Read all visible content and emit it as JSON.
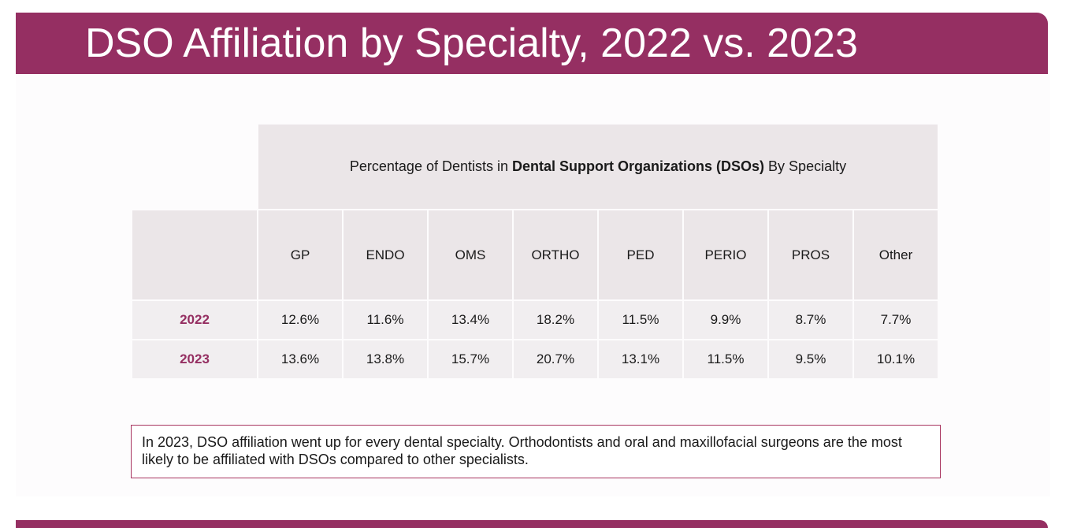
{
  "title": "DSO Affiliation by Specialty, 2022 vs. 2023",
  "table": {
    "header_prefix": "Percentage of Dentists in ",
    "header_bold": "Dental Support Organizations (DSOs)",
    "header_suffix": " By Specialty",
    "specialties": [
      "GP",
      "ENDO",
      "OMS",
      "ORTHO",
      "PED",
      "PERIO",
      "PROS",
      "Other"
    ],
    "rows": [
      {
        "year": "2022",
        "values": [
          "12.6%",
          "11.6%",
          "13.4%",
          "18.2%",
          "11.5%",
          "9.9%",
          "8.7%",
          "7.7%"
        ]
      },
      {
        "year": "2023",
        "values": [
          "13.6%",
          "13.8%",
          "15.7%",
          "20.7%",
          "13.1%",
          "11.5%",
          "9.5%",
          "10.1%"
        ]
      }
    ]
  },
  "callout": "In 2023, DSO affiliation went up for every dental specialty. Orthodontists and oral and maxillofacial surgeons are the most likely to be affiliated with DSOs compared to other specialists.",
  "colors": {
    "brand": "#952f62",
    "table_header_bg": "#ebe6e8",
    "table_row_bg": "#f1eef0"
  }
}
